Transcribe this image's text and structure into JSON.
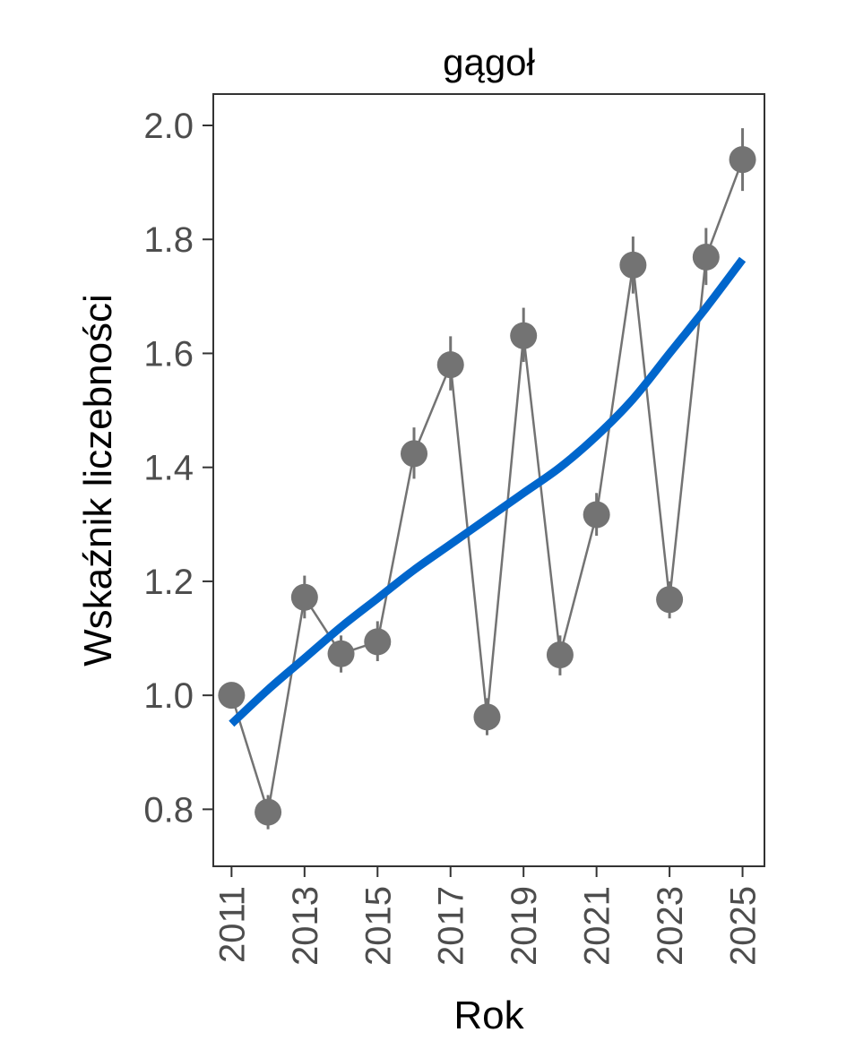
{
  "chart_data": {
    "type": "line",
    "title": "gągoł",
    "xlabel": "Rok",
    "ylabel": "Wskaźnik liczebności",
    "xlim": [
      2010.5,
      2025.6
    ],
    "ylim": [
      0.7,
      2.055
    ],
    "x_ticks": [
      2011,
      2013,
      2015,
      2017,
      2019,
      2021,
      2023,
      2025
    ],
    "y_ticks": [
      0.8,
      1.0,
      1.2,
      1.4,
      1.6,
      1.8,
      2.0
    ],
    "y_tick_labels": [
      "0.8",
      "1.0",
      "1.2",
      "1.4",
      "1.6",
      "1.8",
      "2.0"
    ],
    "grid": false,
    "series": [
      {
        "kind": "points_with_errorbars",
        "color": "#737373",
        "x": [
          2011,
          2012,
          2013,
          2014,
          2015,
          2016,
          2017,
          2018,
          2019,
          2020,
          2021,
          2022,
          2023,
          2024,
          2025
        ],
        "y": [
          1.0,
          0.795,
          1.172,
          1.073,
          1.094,
          1.424,
          1.58,
          0.962,
          1.631,
          1.071,
          1.317,
          1.755,
          1.168,
          1.769,
          1.94
        ],
        "ymin": [
          1.0,
          0.765,
          1.135,
          1.04,
          1.06,
          1.38,
          1.535,
          0.93,
          1.585,
          1.035,
          1.28,
          1.705,
          1.135,
          1.72,
          1.885
        ],
        "ymax": [
          1.0,
          0.825,
          1.21,
          1.105,
          1.13,
          1.47,
          1.63,
          0.995,
          1.68,
          1.105,
          1.355,
          1.805,
          1.2,
          1.82,
          1.995
        ]
      },
      {
        "kind": "trend",
        "color": "#0066cc",
        "x": [
          2011,
          2012,
          2013,
          2014,
          2015,
          2016,
          2017,
          2018,
          2019,
          2020,
          2021,
          2022,
          2023,
          2024,
          2025
        ],
        "y": [
          0.95,
          1.01,
          1.065,
          1.12,
          1.17,
          1.22,
          1.265,
          1.31,
          1.355,
          1.4,
          1.455,
          1.52,
          1.6,
          1.68,
          1.765
        ]
      }
    ]
  }
}
